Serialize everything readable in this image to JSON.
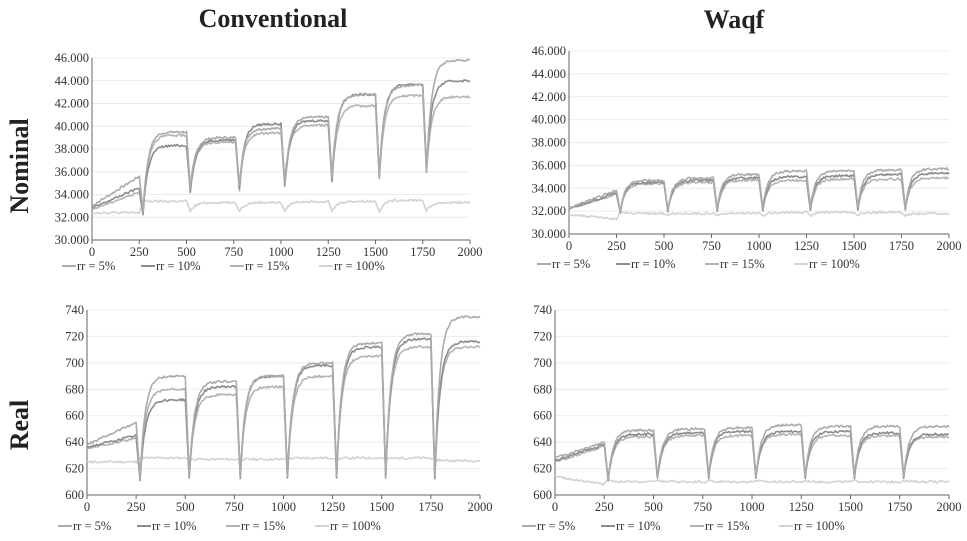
{
  "column_titles": [
    "Conventional",
    "Waqf"
  ],
  "row_titles": [
    "Nominal",
    "Real"
  ],
  "legend_labels": [
    "rr = 5%",
    "rr = 10%",
    "rr = 15%",
    "rr = 100%"
  ],
  "series_colors": [
    "#ababab",
    "#8c8c8c",
    "#b4b4b4",
    "#d3d3d3"
  ],
  "chart_data": [
    {
      "type": "line",
      "panel": "Conventional Nominal",
      "title": "",
      "xlabel": "",
      "ylabel": "",
      "xlim": [
        0,
        2000
      ],
      "ylim": [
        30000,
        46000
      ],
      "xticks": [
        0,
        250,
        500,
        750,
        1000,
        1250,
        1500,
        1750,
        2000
      ],
      "yticks": [
        "30.000",
        "32.000",
        "34.000",
        "36.000",
        "38.000",
        "40.000",
        "42.000",
        "44.000",
        "46.000"
      ],
      "ytick_values": [
        30000,
        32000,
        34000,
        36000,
        38000,
        40000,
        42000,
        44000,
        46000
      ],
      "series": [
        {
          "name": "rr = 5%",
          "x": [
            0,
            250,
            270,
            500,
            520,
            760,
            780,
            1000,
            1020,
            1250,
            1270,
            1500,
            1520,
            1750,
            1770,
            2000
          ],
          "values": [
            33000,
            35600,
            32500,
            39500,
            34500,
            39000,
            34800,
            39800,
            35000,
            40800,
            35500,
            42800,
            35500,
            43600,
            36000,
            45800
          ]
        },
        {
          "name": "rr = 10%",
          "x": [
            0,
            250,
            270,
            500,
            520,
            760,
            780,
            1000,
            1020,
            1250,
            1270,
            1500,
            1520,
            1750,
            1770,
            2000
          ],
          "values": [
            32800,
            34600,
            32300,
            38300,
            34300,
            38800,
            34500,
            40200,
            34800,
            40500,
            35200,
            42800,
            35600,
            43700,
            36200,
            44000
          ]
        },
        {
          "name": "rr = 15%",
          "x": [
            0,
            250,
            270,
            500,
            520,
            760,
            780,
            1000,
            1020,
            1250,
            1270,
            1500,
            1520,
            1750,
            1770,
            2000
          ],
          "values": [
            32700,
            34200,
            32200,
            39200,
            34200,
            38600,
            34400,
            39400,
            34700,
            40100,
            35100,
            41800,
            35400,
            42700,
            36000,
            42600
          ]
        },
        {
          "name": "rr = 100%",
          "x": [
            0,
            250,
            270,
            500,
            520,
            760,
            780,
            1000,
            1020,
            1250,
            1270,
            1500,
            1520,
            1750,
            1770,
            2000
          ],
          "values": [
            32400,
            32400,
            33400,
            33400,
            32500,
            33300,
            32500,
            33300,
            32500,
            33400,
            32500,
            33400,
            32500,
            33500,
            32500,
            33300
          ]
        }
      ]
    },
    {
      "type": "line",
      "panel": "Waqf Nominal",
      "title": "",
      "xlabel": "",
      "ylabel": "",
      "xlim": [
        0,
        2000
      ],
      "ylim": [
        30000,
        46000
      ],
      "xticks": [
        0,
        250,
        500,
        750,
        1000,
        1250,
        1500,
        1750,
        2000
      ],
      "yticks": [
        "30.000",
        "32.000",
        "34.000",
        "36.000",
        "38.000",
        "40.000",
        "42.000",
        "44.000",
        "46.000"
      ],
      "ytick_values": [
        30000,
        32000,
        34000,
        36000,
        38000,
        40000,
        42000,
        44000,
        46000
      ],
      "series": [
        {
          "name": "rr = 5%",
          "x": [
            0,
            250,
            270,
            500,
            520,
            760,
            780,
            1000,
            1020,
            1250,
            1270,
            1500,
            1520,
            1750,
            1770,
            2000
          ],
          "values": [
            32300,
            33800,
            32000,
            34700,
            32100,
            34900,
            32200,
            35200,
            32200,
            35500,
            32300,
            35500,
            32300,
            35600,
            32300,
            35700
          ]
        },
        {
          "name": "rr = 10%",
          "x": [
            0,
            250,
            270,
            500,
            520,
            760,
            780,
            1000,
            1020,
            1250,
            1270,
            1500,
            1520,
            1750,
            1770,
            2000
          ],
          "values": [
            32200,
            33600,
            31900,
            34500,
            32000,
            34700,
            32100,
            34900,
            32100,
            35000,
            32200,
            35100,
            32200,
            35200,
            32200,
            35300
          ]
        },
        {
          "name": "rr = 15%",
          "x": [
            0,
            250,
            270,
            500,
            520,
            760,
            780,
            1000,
            1020,
            1250,
            1270,
            1500,
            1520,
            1750,
            1770,
            2000
          ],
          "values": [
            32200,
            33500,
            31900,
            34400,
            32000,
            34500,
            32000,
            34700,
            32000,
            34700,
            32100,
            34800,
            32100,
            34800,
            32100,
            34900
          ]
        },
        {
          "name": "rr = 100%",
          "x": [
            0,
            250,
            270,
            500,
            520,
            760,
            780,
            1000,
            1020,
            1250,
            1270,
            1500,
            1520,
            1750,
            1770,
            2000
          ],
          "values": [
            31700,
            31300,
            32000,
            31800,
            31700,
            31800,
            31600,
            31800,
            31600,
            31900,
            31600,
            31900,
            31600,
            31900,
            31600,
            31800
          ]
        }
      ]
    },
    {
      "type": "line",
      "panel": "Conventional Real",
      "title": "",
      "xlabel": "",
      "ylabel": "",
      "xlim": [
        0,
        2000
      ],
      "ylim": [
        600,
        740
      ],
      "xticks": [
        0,
        250,
        500,
        750,
        1000,
        1250,
        1500,
        1750,
        2000
      ],
      "yticks": [
        "600",
        "620",
        "640",
        "660",
        "680",
        "700",
        "720",
        "740"
      ],
      "ytick_values": [
        600,
        620,
        640,
        660,
        680,
        700,
        720,
        740
      ],
      "series": [
        {
          "name": "rr = 5%",
          "x": [
            0,
            250,
            270,
            500,
            520,
            760,
            780,
            1000,
            1020,
            1250,
            1270,
            1500,
            1520,
            1750,
            1770,
            2000
          ],
          "values": [
            638,
            655,
            612,
            690,
            614,
            686,
            614,
            690,
            614,
            700,
            614,
            715,
            614,
            722,
            614,
            735
          ]
        },
        {
          "name": "rr = 10%",
          "x": [
            0,
            250,
            270,
            500,
            520,
            760,
            780,
            1000,
            1020,
            1250,
            1270,
            1500,
            1520,
            1750,
            1770,
            2000
          ],
          "values": [
            636,
            645,
            611,
            672,
            613,
            682,
            613,
            690,
            613,
            698,
            613,
            712,
            613,
            718,
            613,
            716
          ]
        },
        {
          "name": "rr = 15%",
          "x": [
            0,
            250,
            270,
            500,
            520,
            760,
            780,
            1000,
            1020,
            1250,
            1270,
            1500,
            1520,
            1750,
            1770,
            2000
          ],
          "values": [
            635,
            643,
            611,
            680,
            613,
            676,
            613,
            682,
            613,
            690,
            613,
            705,
            613,
            712,
            613,
            712
          ]
        },
        {
          "name": "rr = 100%",
          "x": [
            0,
            250,
            270,
            500,
            520,
            760,
            780,
            1000,
            1020,
            1250,
            1270,
            1500,
            1520,
            1750,
            1770,
            2000
          ],
          "values": [
            625,
            625,
            628,
            628,
            627,
            627,
            627,
            627,
            627,
            628,
            627,
            628,
            627,
            628,
            627,
            626
          ]
        }
      ]
    },
    {
      "type": "line",
      "panel": "Waqf Real",
      "title": "",
      "xlabel": "",
      "ylabel": "",
      "xlim": [
        0,
        2000
      ],
      "ylim": [
        600,
        740
      ],
      "xticks": [
        0,
        250,
        500,
        750,
        1000,
        1250,
        1500,
        1750,
        2000
      ],
      "yticks": [
        "600",
        "620",
        "640",
        "660",
        "680",
        "700",
        "720",
        "740"
      ],
      "ytick_values": [
        600,
        620,
        640,
        660,
        680,
        700,
        720,
        740
      ],
      "series": [
        {
          "name": "rr = 5%",
          "x": [
            0,
            250,
            270,
            500,
            520,
            760,
            780,
            1000,
            1020,
            1250,
            1270,
            1500,
            1520,
            1750,
            1770,
            2000
          ],
          "values": [
            628,
            640,
            612,
            649,
            614,
            650,
            614,
            651,
            614,
            653,
            614,
            652,
            614,
            652,
            614,
            652
          ]
        },
        {
          "name": "rr = 10%",
          "x": [
            0,
            250,
            270,
            500,
            520,
            760,
            780,
            1000,
            1020,
            1250,
            1270,
            1500,
            1520,
            1750,
            1770,
            2000
          ],
          "values": [
            626,
            638,
            611,
            646,
            613,
            647,
            613,
            648,
            613,
            648,
            613,
            648,
            613,
            647,
            613,
            646
          ]
        },
        {
          "name": "rr = 15%",
          "x": [
            0,
            250,
            270,
            500,
            520,
            760,
            780,
            1000,
            1020,
            1250,
            1270,
            1500,
            1520,
            1750,
            1770,
            2000
          ],
          "values": [
            625,
            637,
            611,
            644,
            613,
            645,
            613,
            645,
            613,
            646,
            613,
            645,
            613,
            645,
            613,
            644
          ]
        },
        {
          "name": "rr = 100%",
          "x": [
            0,
            250,
            270,
            500,
            520,
            760,
            780,
            1000,
            1020,
            1250,
            1270,
            1500,
            1520,
            1750,
            1770,
            2000
          ],
          "values": [
            614,
            608,
            612,
            610,
            611,
            610,
            611,
            610,
            611,
            610,
            611,
            610,
            611,
            610,
            611,
            610
          ]
        }
      ]
    }
  ]
}
